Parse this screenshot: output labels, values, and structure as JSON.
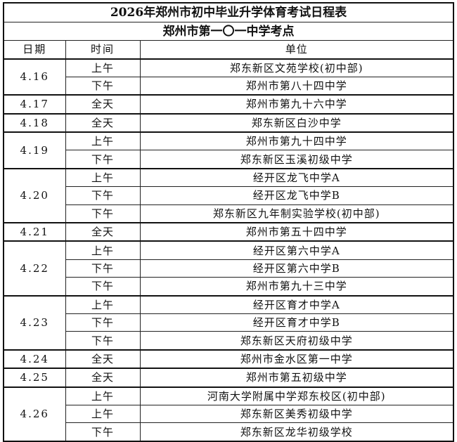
{
  "title": "2026年郑州市初中毕业升学体育考试日程表",
  "subtitle": "郑州市第一〇一中学考点",
  "headers": {
    "date": "日期",
    "time": "时间",
    "unit": "单位"
  },
  "schedule": [
    {
      "date": "4.16",
      "sessions": [
        {
          "time": "上午",
          "unit": "郑东新区文苑学校(初中部)"
        },
        {
          "time": "下午",
          "unit": "郑州市第八十四中学"
        }
      ]
    },
    {
      "date": "4.17",
      "sessions": [
        {
          "time": "全天",
          "unit": "郑州市第九十六中学"
        }
      ]
    },
    {
      "date": "4.18",
      "sessions": [
        {
          "time": "全天",
          "unit": "郑东新区白沙中学"
        }
      ]
    },
    {
      "date": "4.19",
      "sessions": [
        {
          "time": "上午",
          "unit": "郑州市第九十四中学"
        },
        {
          "time": "下午",
          "unit": "郑东新区玉溪初级中学"
        }
      ]
    },
    {
      "date": "4.20",
      "sessions": [
        {
          "time": "上午",
          "unit": "经开区龙飞中学A"
        },
        {
          "time": "下午",
          "unit": "经开区龙飞中学B"
        },
        {
          "time": "下午",
          "unit": "郑东新区九年制实验学校(初中部)"
        }
      ]
    },
    {
      "date": "4.21",
      "sessions": [
        {
          "time": "全天",
          "unit": "郑州市第五十四中学"
        }
      ]
    },
    {
      "date": "4.22",
      "sessions": [
        {
          "time": "上午",
          "unit": "经开区第六中学A"
        },
        {
          "time": "下午",
          "unit": "经开区第六中学B"
        },
        {
          "time": "下午",
          "unit": "郑州市第九十三中学"
        }
      ]
    },
    {
      "date": "4.23",
      "sessions": [
        {
          "time": "上午",
          "unit": "经开区育才中学A"
        },
        {
          "time": "下午",
          "unit": "经开区育才中学B"
        },
        {
          "time": "下午",
          "unit": "郑东新区天府初级中学"
        }
      ]
    },
    {
      "date": "4.24",
      "sessions": [
        {
          "time": "全天",
          "unit": "郑州市金水区第一中学"
        }
      ]
    },
    {
      "date": "4.25",
      "sessions": [
        {
          "time": "全天",
          "unit": "郑州市第五初级中学"
        }
      ]
    },
    {
      "date": "4.26",
      "sessions": [
        {
          "time": "上午",
          "unit": "河南大学附属中学郑东校区(初中部)"
        },
        {
          "time": "上午",
          "unit": "郑东新区美秀初级中学"
        },
        {
          "time": "下午",
          "unit": "郑东新区龙华初级学校"
        }
      ]
    }
  ]
}
